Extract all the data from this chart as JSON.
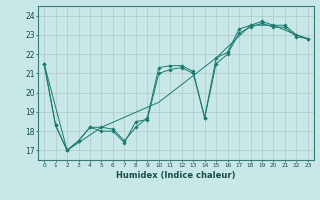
{
  "title": "",
  "xlabel": "Humidex (Indice chaleur)",
  "background_color": "#c8e8e8",
  "grid_color": "#b0c8c8",
  "line_color": "#1a7a6e",
  "xlim": [
    -0.5,
    23.5
  ],
  "ylim": [
    16.5,
    24.5
  ],
  "yticks": [
    17,
    18,
    19,
    20,
    21,
    22,
    23,
    24
  ],
  "xticks": [
    0,
    1,
    2,
    3,
    4,
    5,
    6,
    7,
    8,
    9,
    10,
    11,
    12,
    13,
    14,
    15,
    16,
    17,
    18,
    19,
    20,
    21,
    22,
    23
  ],
  "series": [
    {
      "x": [
        0,
        1,
        2,
        3,
        4,
        5,
        6,
        7,
        8,
        9,
        10,
        11,
        12,
        13,
        14,
        15,
        16,
        17,
        18,
        19,
        20,
        21,
        22,
        23
      ],
      "y": [
        21.5,
        18.3,
        17.0,
        17.5,
        18.2,
        18.2,
        18.1,
        17.5,
        18.2,
        18.7,
        21.3,
        21.4,
        21.4,
        21.1,
        18.7,
        21.8,
        22.1,
        23.3,
        23.5,
        23.7,
        23.5,
        23.5,
        23.0,
        22.8
      ]
    },
    {
      "x": [
        0,
        1,
        2,
        3,
        4,
        5,
        6,
        7,
        8,
        9,
        10,
        11,
        12,
        13,
        14,
        15,
        16,
        17,
        18,
        19,
        20,
        21,
        22,
        23
      ],
      "y": [
        21.5,
        18.3,
        17.0,
        17.5,
        18.2,
        18.0,
        18.0,
        17.4,
        18.5,
        18.6,
        21.0,
        21.2,
        21.3,
        21.0,
        18.7,
        21.5,
        22.0,
        23.1,
        23.4,
        23.6,
        23.4,
        23.4,
        22.9,
        22.8
      ]
    },
    {
      "x": [
        0,
        2,
        5,
        10,
        15,
        18,
        20,
        22,
        23
      ],
      "y": [
        21.5,
        17.0,
        18.2,
        19.5,
        21.8,
        23.5,
        23.5,
        23.0,
        22.8
      ]
    }
  ]
}
